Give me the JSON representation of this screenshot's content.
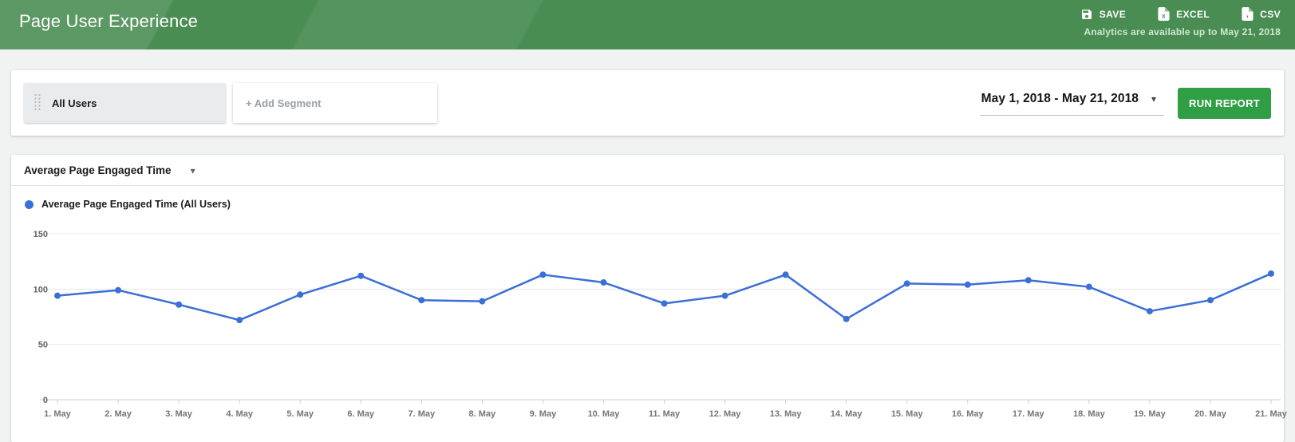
{
  "header": {
    "title": "Page User Experience",
    "actions": [
      {
        "label": "SAVE",
        "icon": "save-icon"
      },
      {
        "label": "EXCEL",
        "icon": "excel-file-icon"
      },
      {
        "label": "CSV",
        "icon": "csv-file-icon"
      }
    ],
    "availability_note": "Analytics are available up to May 21, 2018"
  },
  "segment_bar": {
    "segment_label": "All Users",
    "add_segment_label": "+ Add Segment",
    "date_range": "May 1, 2018 - May 21, 2018",
    "run_report_label": "RUN REPORT"
  },
  "report": {
    "metric_selector_label": "Average Page Engaged Time",
    "legend_label": "Average Page Engaged Time (All Users)"
  },
  "ui": {
    "caret_down": "▾"
  },
  "colors": {
    "header_green": "#4a8d53",
    "run_report_green": "#2f9e44",
    "series_blue": "#3b6fd6",
    "grid_gray": "#e8e8e8",
    "axis_line": "#c9cede"
  },
  "chart_data": {
    "type": "line",
    "title": "Average Page Engaged Time",
    "categories": [
      "1. May",
      "2. May",
      "3. May",
      "4. May",
      "5. May",
      "6. May",
      "7. May",
      "8. May",
      "9. May",
      "10. May",
      "11. May",
      "12. May",
      "13. May",
      "14. May",
      "15. May",
      "16. May",
      "17. May",
      "18. May",
      "19. May",
      "20. May",
      "21. May"
    ],
    "series": [
      {
        "name": "Average Page Engaged Time (All Users)",
        "values": [
          94,
          99,
          86,
          72,
          95,
          112,
          90,
          89,
          113,
          106,
          87,
          94,
          113,
          73,
          105,
          104,
          108,
          102,
          80,
          90,
          114
        ]
      }
    ],
    "xlabel": "",
    "ylabel": "",
    "ylim": [
      0,
      150
    ],
    "yticks": [
      0,
      50,
      100,
      150
    ],
    "grid": true,
    "legend_position": "top-left",
    "line_color": "#3b6fd6"
  }
}
